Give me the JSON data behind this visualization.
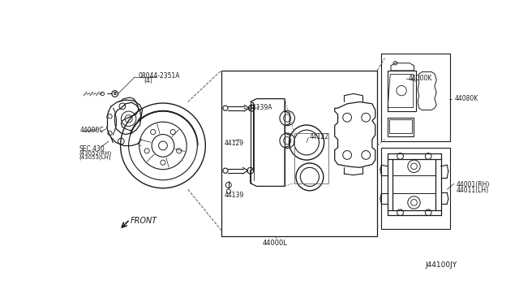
{
  "background_color": "#f5f5f0",
  "diagram_id": "J44100JY",
  "line_color": "#1a1a1a",
  "text_color": "#1a1a1a",
  "font_size": 6.0,
  "font_size_small": 5.5,
  "labels": {
    "bolt": "08044-2351A",
    "bolt2": "(4)",
    "p44000C": "44000C",
    "sec430": "SEC.430",
    "sec430b": "(43052(RH)",
    "sec430c": "(43053(LH)",
    "p44139A": "44139A",
    "p44129": "44129",
    "p44139": "44139",
    "p44122": "44122",
    "p44000L": "44000L",
    "p44000K": "44000K",
    "p44080K": "44080K",
    "p44001RH": "44001(RH)",
    "p44011LH": "44011(LH)",
    "front": "FRONT"
  }
}
